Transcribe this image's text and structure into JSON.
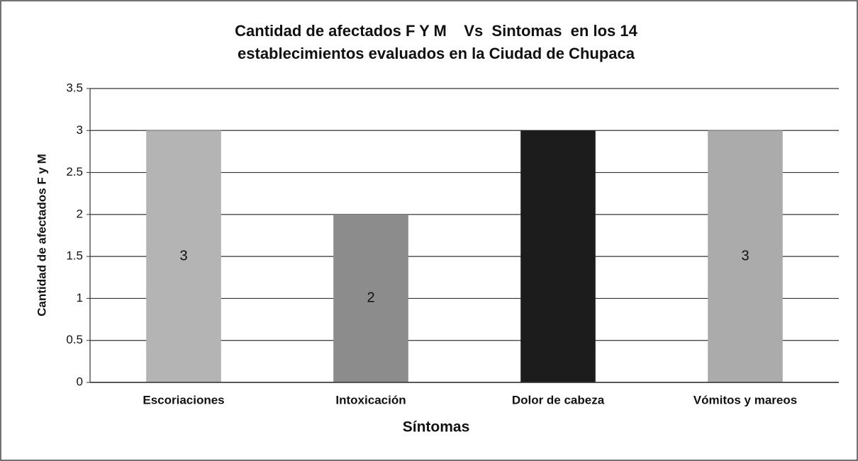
{
  "chart_data": {
    "type": "bar",
    "title": [
      "Cantidad de afectados F Y M    Vs  Sintomas  en los 14",
      "establecimientos evaluados en la Ciudad de Chupaca"
    ],
    "x_label": "Síntomas",
    "y_label": "Cantidad de afectados F y M",
    "categories": [
      "Escoriaciones",
      "Intoxicación",
      "Dolor de cabeza",
      "Vómitos y mareos"
    ],
    "values": [
      3,
      2,
      3,
      3
    ],
    "colors": [
      "#b4b4b4",
      "#8c8c8c",
      "#1c1c1c",
      "#ababab"
    ],
    "data_labels": [
      true,
      true,
      false,
      true
    ],
    "ylim": [
      0,
      3.5
    ],
    "yticks": [
      0,
      0.5,
      1,
      1.5,
      2,
      2.5,
      3,
      3.5
    ],
    "grid": true
  }
}
